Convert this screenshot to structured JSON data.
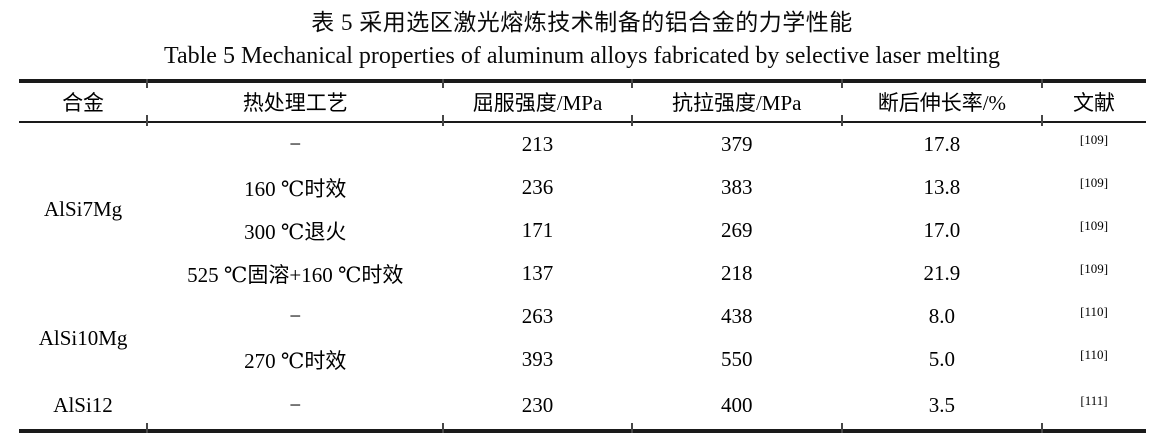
{
  "titles": {
    "zh": "表 5  采用选区激光熔炼技术制备的铝合金的力学性能",
    "en": "Table 5 Mechanical properties of aluminum alloys fabricated by selective laser melting"
  },
  "colors": {
    "text": "#000000",
    "rule": "#1a1a1a",
    "background": "#ffffff"
  },
  "table": {
    "headers": [
      "合金",
      "热处理工艺",
      "屈服强度/MPa",
      "抗拉强度/MPa",
      "断后伸长率/%",
      "文献"
    ],
    "groups": [
      {
        "alloy": "AlSi7Mg",
        "rows": [
          {
            "treatment": "−",
            "yield_strength": "213",
            "tensile_strength": "379",
            "elongation": "17.8",
            "ref": "[109]"
          },
          {
            "treatment": "160 ℃时效",
            "yield_strength": "236",
            "tensile_strength": "383",
            "elongation": "13.8",
            "ref": "[109]"
          },
          {
            "treatment": "300 ℃退火",
            "yield_strength": "171",
            "tensile_strength": "269",
            "elongation": "17.0",
            "ref": "[109]"
          },
          {
            "treatment": "525 ℃固溶+160 ℃时效",
            "yield_strength": "137",
            "tensile_strength": "218",
            "elongation": "21.9",
            "ref": "[109]"
          }
        ]
      },
      {
        "alloy": "AlSi10Mg",
        "rows": [
          {
            "treatment": "−",
            "yield_strength": "263",
            "tensile_strength": "438",
            "elongation": "8.0",
            "ref": "[110]"
          },
          {
            "treatment": "270 ℃时效",
            "yield_strength": "393",
            "tensile_strength": "550",
            "elongation": "5.0",
            "ref": "[110]"
          }
        ]
      },
      {
        "alloy": "AlSi12",
        "rows": [
          {
            "treatment": "−",
            "yield_strength": "230",
            "tensile_strength": "400",
            "elongation": "3.5",
            "ref": "[111]"
          }
        ]
      }
    ]
  }
}
